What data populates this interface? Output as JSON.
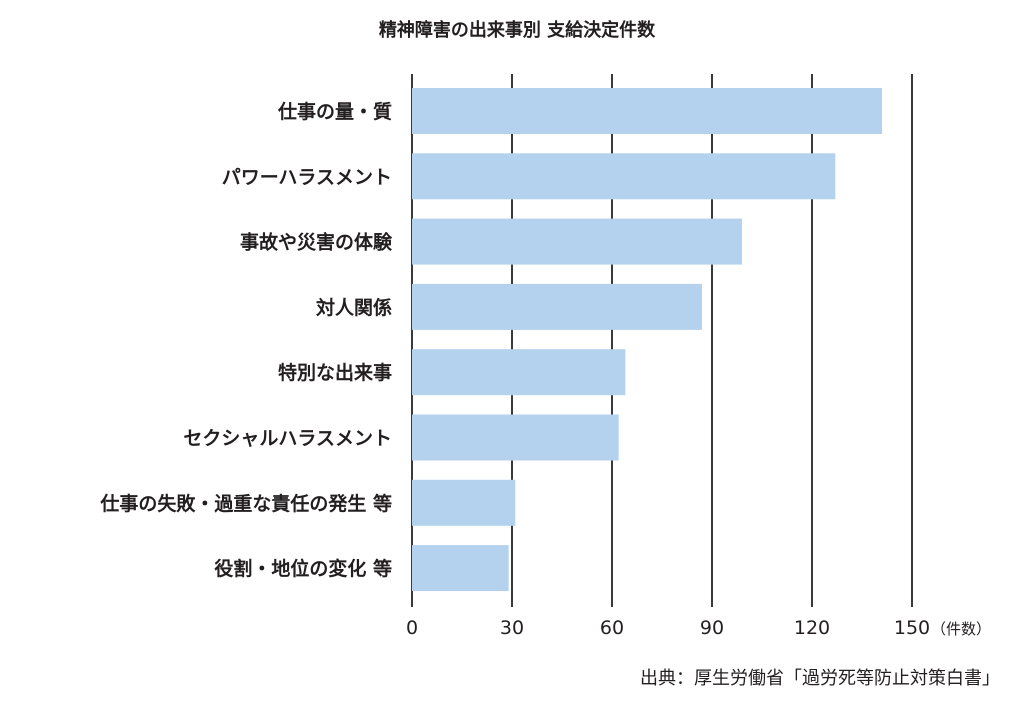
{
  "chart_data": {
    "type": "bar",
    "orientation": "horizontal",
    "title": "精神障害の出来事別 支給決定件数",
    "categories": [
      "仕事の量・質",
      "パワーハラスメント",
      "事故や災害の体験",
      "対人関係",
      "特別な出来事",
      "セクシャルハラスメント",
      "仕事の失敗・過重な責任の発生 等",
      "役割・地位の変化 等"
    ],
    "values": [
      141,
      127,
      99,
      87,
      64,
      62,
      31,
      29
    ],
    "xlim": [
      0,
      150
    ],
    "xticks": [
      0,
      30,
      60,
      90,
      120,
      150
    ],
    "xticks_labels": [
      "0",
      "30",
      "60",
      "90",
      "120",
      "150"
    ],
    "unit_label": "（件数）",
    "grid": true,
    "bar_color": "#b4d2ee",
    "source": "出典：厚生労働省「過労死等防止対策白書」"
  }
}
